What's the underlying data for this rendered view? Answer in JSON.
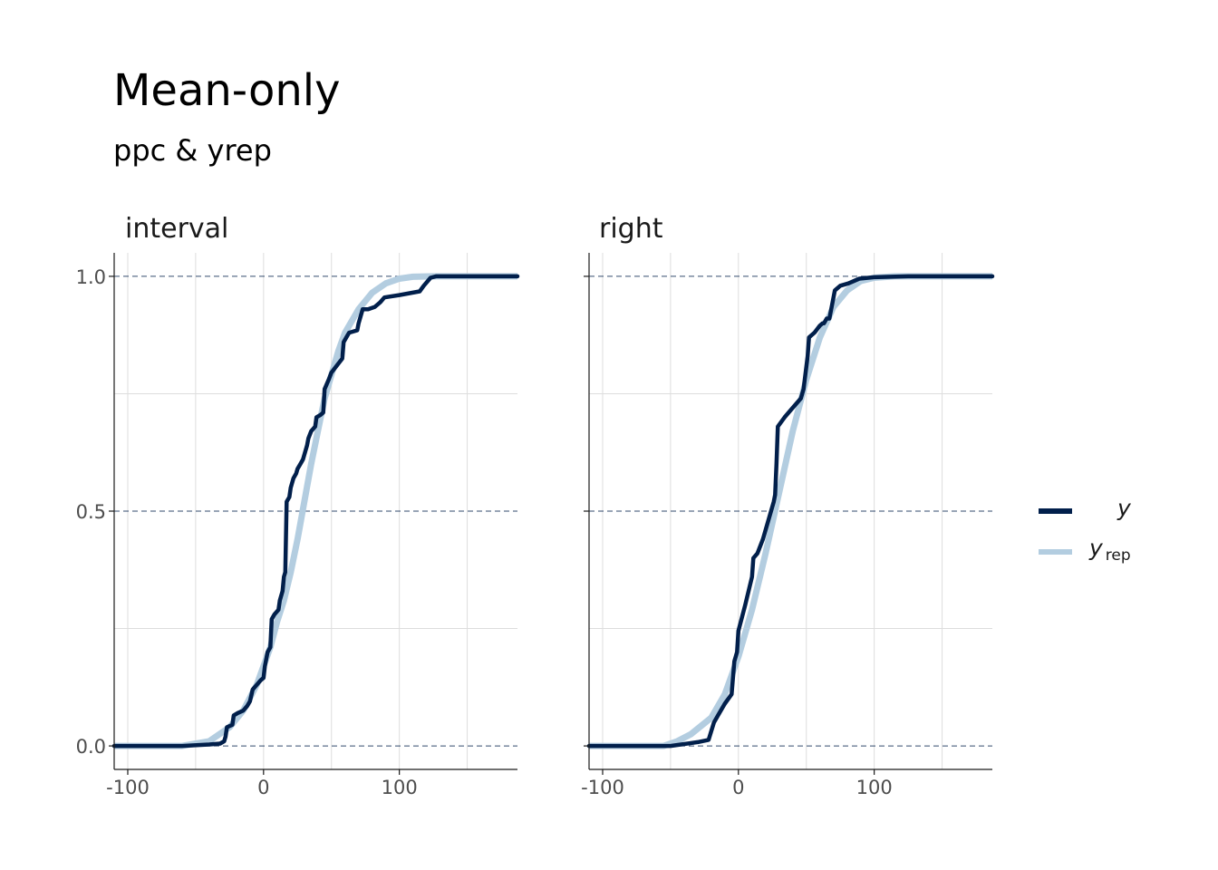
{
  "title": "Mean-only",
  "subtitle": "ppc & yrep",
  "colors": {
    "y": "#011f4b",
    "yrep": "#b3cde0",
    "grid": "#dddddd",
    "axis": "#1a1a1a",
    "ref_line": "#011f4b"
  },
  "legend": {
    "placement": "right",
    "items": [
      {
        "key": "y",
        "label": "y",
        "subscript": ""
      },
      {
        "key": "yrep",
        "label": "y",
        "subscript": "rep"
      }
    ]
  },
  "chart_data": [
    {
      "type": "line",
      "panel": "interval",
      "xlim": [
        -110,
        187
      ],
      "ylim": [
        -0.05,
        1.05
      ],
      "x_ticks": [
        -100,
        0,
        100
      ],
      "y_ticks": [
        0,
        0.5,
        1
      ],
      "x_tick_labels": [
        "-100",
        "0",
        "100"
      ],
      "y_tick_labels": [
        "0.0",
        "0.5",
        "1.0"
      ],
      "reference_lines_y": [
        0,
        0.5,
        1
      ],
      "grid": true,
      "series": [
        {
          "key": "y",
          "points": [
            [
              -110,
              0
            ],
            [
              -60,
              0
            ],
            [
              -40,
              0.003
            ],
            [
              -32,
              0.005
            ],
            [
              -29,
              0.01
            ],
            [
              -28,
              0.02
            ],
            [
              -27,
              0.04
            ],
            [
              -23,
              0.045
            ],
            [
              -22,
              0.065
            ],
            [
              -19,
              0.07
            ],
            [
              -15,
              0.075
            ],
            [
              -12,
              0.085
            ],
            [
              -10,
              0.095
            ],
            [
              -8,
              0.12
            ],
            [
              -5,
              0.13
            ],
            [
              -2,
              0.14
            ],
            [
              0,
              0.145
            ],
            [
              1,
              0.17
            ],
            [
              3,
              0.2
            ],
            [
              5,
              0.21
            ],
            [
              6,
              0.27
            ],
            [
              8,
              0.28
            ],
            [
              11,
              0.29
            ],
            [
              12,
              0.31
            ],
            [
              14,
              0.33
            ],
            [
              15,
              0.36
            ],
            [
              16,
              0.37
            ],
            [
              17,
              0.52
            ],
            [
              19,
              0.53
            ],
            [
              20,
              0.55
            ],
            [
              22,
              0.57
            ],
            [
              24,
              0.58
            ],
            [
              25,
              0.59
            ],
            [
              27,
              0.6
            ],
            [
              29,
              0.61
            ],
            [
              32,
              0.64
            ],
            [
              33,
              0.655
            ],
            [
              35,
              0.67
            ],
            [
              38,
              0.68
            ],
            [
              39,
              0.7
            ],
            [
              42,
              0.705
            ],
            [
              44,
              0.71
            ],
            [
              45,
              0.76
            ],
            [
              48,
              0.78
            ],
            [
              50,
              0.795
            ],
            [
              54,
              0.81
            ],
            [
              58,
              0.825
            ],
            [
              59,
              0.86
            ],
            [
              61,
              0.87
            ],
            [
              63,
              0.88
            ],
            [
              69,
              0.885
            ],
            [
              70,
              0.9
            ],
            [
              73,
              0.93
            ],
            [
              77,
              0.93
            ],
            [
              82,
              0.935
            ],
            [
              86,
              0.945
            ],
            [
              89,
              0.955
            ],
            [
              100,
              0.96
            ],
            [
              115,
              0.968
            ],
            [
              118,
              0.98
            ],
            [
              123,
              0.997
            ],
            [
              127,
              1
            ],
            [
              187,
              1
            ]
          ]
        },
        {
          "key": "yrep",
          "points": [
            [
              -110,
              0
            ],
            [
              -60,
              0
            ],
            [
              -40,
              0.01
            ],
            [
              -25,
              0.04
            ],
            [
              -15,
              0.075
            ],
            [
              -5,
              0.13
            ],
            [
              5,
              0.21
            ],
            [
              10,
              0.265
            ],
            [
              15,
              0.31
            ],
            [
              20,
              0.37
            ],
            [
              25,
              0.44
            ],
            [
              30,
              0.52
            ],
            [
              35,
              0.6
            ],
            [
              40,
              0.67
            ],
            [
              45,
              0.74
            ],
            [
              50,
              0.79
            ],
            [
              55,
              0.84
            ],
            [
              60,
              0.88
            ],
            [
              70,
              0.93
            ],
            [
              80,
              0.965
            ],
            [
              90,
              0.985
            ],
            [
              100,
              0.995
            ],
            [
              110,
              0.999
            ],
            [
              125,
              1
            ],
            [
              187,
              1
            ]
          ]
        }
      ]
    },
    {
      "type": "line",
      "panel": "right",
      "xlim": [
        -110,
        187
      ],
      "ylim": [
        -0.05,
        1.05
      ],
      "x_ticks": [
        -100,
        0,
        100
      ],
      "y_ticks": [
        0,
        0.5,
        1
      ],
      "x_tick_labels": [
        "-100",
        "0",
        "100"
      ],
      "y_tick_labels": [
        "0.0",
        "0.5",
        "1.0"
      ],
      "reference_lines_y": [
        0,
        0.5,
        1
      ],
      "grid": true,
      "series": [
        {
          "key": "y",
          "points": [
            [
              -110,
              0
            ],
            [
              -50,
              0
            ],
            [
              -30,
              0.008
            ],
            [
              -22,
              0.013
            ],
            [
              -18,
              0.05
            ],
            [
              -15,
              0.065
            ],
            [
              -10,
              0.09
            ],
            [
              -5,
              0.11
            ],
            [
              -3,
              0.18
            ],
            [
              -1,
              0.2
            ],
            [
              0,
              0.245
            ],
            [
              5,
              0.3
            ],
            [
              10,
              0.36
            ],
            [
              11,
              0.4
            ],
            [
              14,
              0.41
            ],
            [
              18,
              0.44
            ],
            [
              24,
              0.5
            ],
            [
              26,
              0.52
            ],
            [
              27,
              0.535
            ],
            [
              28,
              0.6
            ],
            [
              29,
              0.68
            ],
            [
              34,
              0.7
            ],
            [
              40,
              0.72
            ],
            [
              46,
              0.74
            ],
            [
              48,
              0.76
            ],
            [
              51,
              0.83
            ],
            [
              52,
              0.87
            ],
            [
              56,
              0.88
            ],
            [
              60,
              0.895
            ],
            [
              62,
              0.9
            ],
            [
              63,
              0.9
            ],
            [
              65,
              0.91
            ],
            [
              67,
              0.91
            ],
            [
              69,
              0.94
            ],
            [
              71,
              0.97
            ],
            [
              75,
              0.98
            ],
            [
              81,
              0.985
            ],
            [
              89,
              0.995
            ],
            [
              100,
              0.998
            ],
            [
              125,
              1
            ],
            [
              187,
              1
            ]
          ]
        },
        {
          "key": "yrep",
          "points": [
            [
              -110,
              0
            ],
            [
              -55,
              0
            ],
            [
              -45,
              0.01
            ],
            [
              -35,
              0.025
            ],
            [
              -20,
              0.06
            ],
            [
              -10,
              0.11
            ],
            [
              0,
              0.19
            ],
            [
              10,
              0.29
            ],
            [
              20,
              0.41
            ],
            [
              30,
              0.54
            ],
            [
              40,
              0.67
            ],
            [
              50,
              0.78
            ],
            [
              60,
              0.87
            ],
            [
              70,
              0.935
            ],
            [
              80,
              0.97
            ],
            [
              90,
              0.99
            ],
            [
              100,
              0.997
            ],
            [
              115,
              1
            ],
            [
              187,
              1
            ]
          ]
        }
      ]
    }
  ]
}
